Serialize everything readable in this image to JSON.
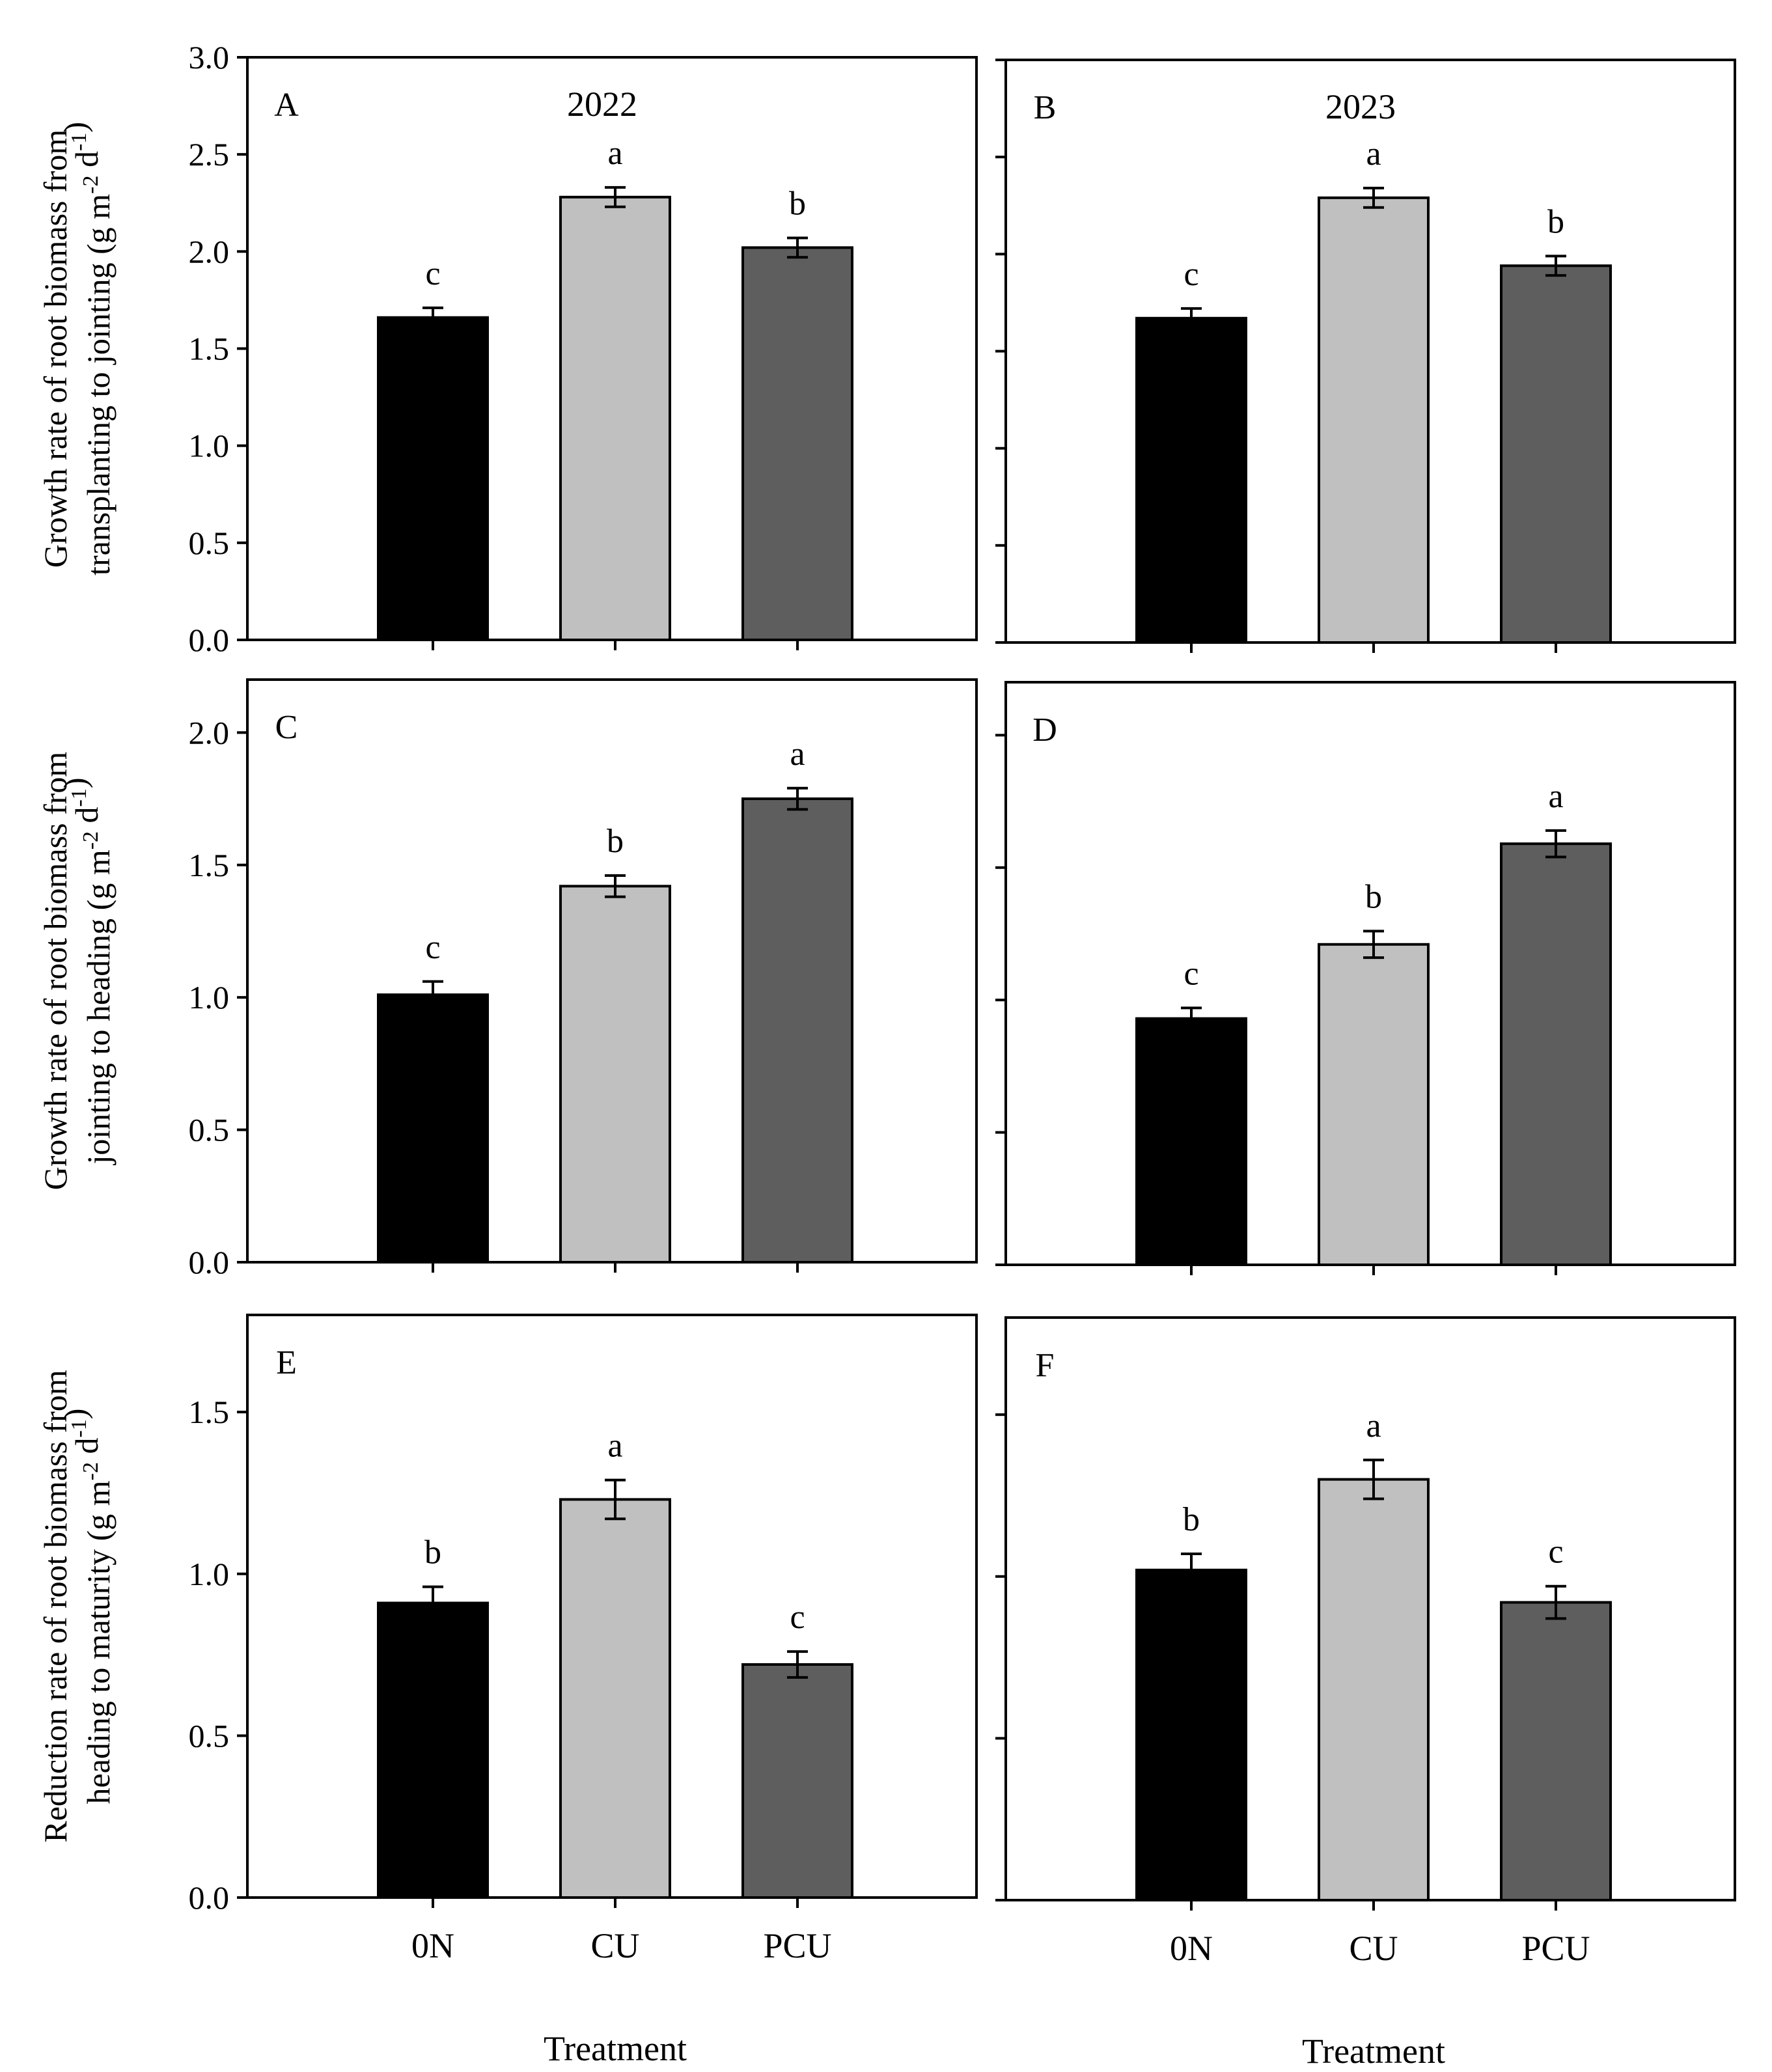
{
  "figure": {
    "xlabel": "Treatment",
    "colors": {
      "0N": "#000000",
      "CU": "#c0c0c0",
      "PCU": "#5e5e5e",
      "edge": "#000000"
    }
  },
  "chart_data": [
    {
      "type": "bar",
      "panel": "A",
      "year": "2022",
      "categories": [
        "0N",
        "CU",
        "PCU"
      ],
      "values": [
        1.66,
        2.28,
        2.02
      ],
      "errors": [
        0.05,
        0.05,
        0.05
      ],
      "significance": [
        "c",
        "a",
        "b"
      ],
      "ylabel": [
        "Growth rate of root biomass from",
        "transplanting to jointing (g m-2 d-1)"
      ],
      "ylim": [
        0,
        3.0
      ],
      "yticks": [
        "0.0",
        "0.5",
        "1.0",
        "1.5",
        "2.0",
        "2.5",
        "3.0"
      ],
      "xlabel": ""
    },
    {
      "type": "bar",
      "panel": "B",
      "year": "2023",
      "categories": [
        "0N",
        "CU",
        "PCU"
      ],
      "values": [
        1.67,
        2.29,
        1.94
      ],
      "errors": [
        0.05,
        0.05,
        0.05
      ],
      "significance": [
        "c",
        "a",
        "b"
      ],
      "ylabel": "",
      "ylim": [
        0,
        3.0
      ],
      "yticks": [],
      "xlabel": ""
    },
    {
      "type": "bar",
      "panel": "C",
      "year": "",
      "categories": [
        "0N",
        "CU",
        "PCU"
      ],
      "values": [
        1.01,
        1.42,
        1.75
      ],
      "errors": [
        0.05,
        0.04,
        0.04
      ],
      "significance": [
        "c",
        "b",
        "a"
      ],
      "ylabel": [
        "Growth rate of root biomass from",
        "jointing to heading (g m-2 d-1)"
      ],
      "ylim": [
        0,
        2.2
      ],
      "yticks": [
        "0.0",
        "0.5",
        "1.0",
        "1.5",
        "2.0"
      ],
      "xlabel": ""
    },
    {
      "type": "bar",
      "panel": "D",
      "year": "",
      "categories": [
        "0N",
        "CU",
        "PCU"
      ],
      "values": [
        0.93,
        1.21,
        1.59
      ],
      "errors": [
        0.04,
        0.05,
        0.05
      ],
      "significance": [
        "c",
        "b",
        "a"
      ],
      "ylabel": "",
      "ylim": [
        0,
        2.2
      ],
      "yticks": [],
      "xlabel": ""
    },
    {
      "type": "bar",
      "panel": "E",
      "year": "",
      "categories": [
        "0N",
        "CU",
        "PCU"
      ],
      "values": [
        0.91,
        1.23,
        0.72
      ],
      "errors": [
        0.05,
        0.06,
        0.04
      ],
      "significance": [
        "b",
        "a",
        "c"
      ],
      "ylabel": [
        "Reduction rate of root biomass from",
        "heading to maturity (g m-2 d-1)"
      ],
      "ylim": [
        0,
        1.8
      ],
      "yticks": [
        "0.0",
        "0.5",
        "1.0",
        "1.5"
      ],
      "xlabel": "Treatment"
    },
    {
      "type": "bar",
      "panel": "F",
      "year": "",
      "categories": [
        "0N",
        "CU",
        "PCU"
      ],
      "values": [
        1.02,
        1.3,
        0.92
      ],
      "errors": [
        0.05,
        0.06,
        0.05
      ],
      "significance": [
        "b",
        "a",
        "c"
      ],
      "ylabel": "",
      "ylim": [
        0,
        1.8
      ],
      "yticks": [],
      "xlabel": "Treatment"
    }
  ]
}
